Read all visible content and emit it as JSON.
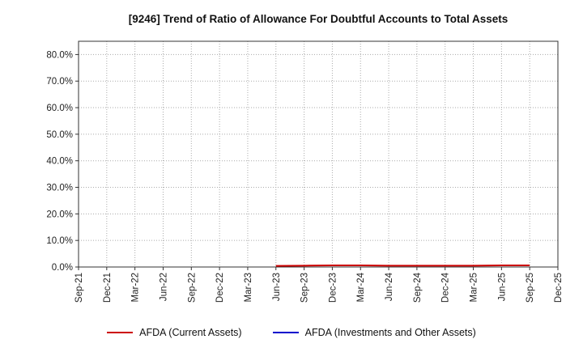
{
  "chart_data": {
    "type": "line",
    "title": "[9246]  Trend of Ratio of Allowance For Doubtful Accounts to Total Assets",
    "xlabel": "",
    "ylabel": "",
    "grid": true,
    "legend_position": "bottom",
    "ylim": [
      0,
      85
    ],
    "y_ticks": [
      "0.0%",
      "10.0%",
      "20.0%",
      "30.0%",
      "40.0%",
      "50.0%",
      "60.0%",
      "70.0%",
      "80.0%"
    ],
    "y_tick_values": [
      0,
      10,
      20,
      30,
      40,
      50,
      60,
      70,
      80
    ],
    "categories": [
      "Sep-21",
      "Dec-21",
      "Mar-22",
      "Jun-22",
      "Sep-22",
      "Dec-22",
      "Mar-23",
      "Jun-23",
      "Sep-23",
      "Dec-23",
      "Mar-24",
      "Jun-24",
      "Sep-24",
      "Dec-24",
      "Mar-25",
      "Jun-25",
      "Sep-25",
      "Dec-25"
    ],
    "series": [
      {
        "name": "AFDA (Current Assets)",
        "color": "#cc0000",
        "values": [
          null,
          null,
          null,
          null,
          null,
          null,
          null,
          0.4,
          0.5,
          0.6,
          0.6,
          0.5,
          0.5,
          0.5,
          0.5,
          0.6,
          0.6,
          null
        ]
      },
      {
        "name": "AFDA (Investments and Other Assets)",
        "color": "#0000cc",
        "values": [
          null,
          null,
          null,
          null,
          null,
          null,
          null,
          null,
          null,
          null,
          null,
          null,
          null,
          null,
          null,
          null,
          null,
          null
        ]
      }
    ]
  }
}
